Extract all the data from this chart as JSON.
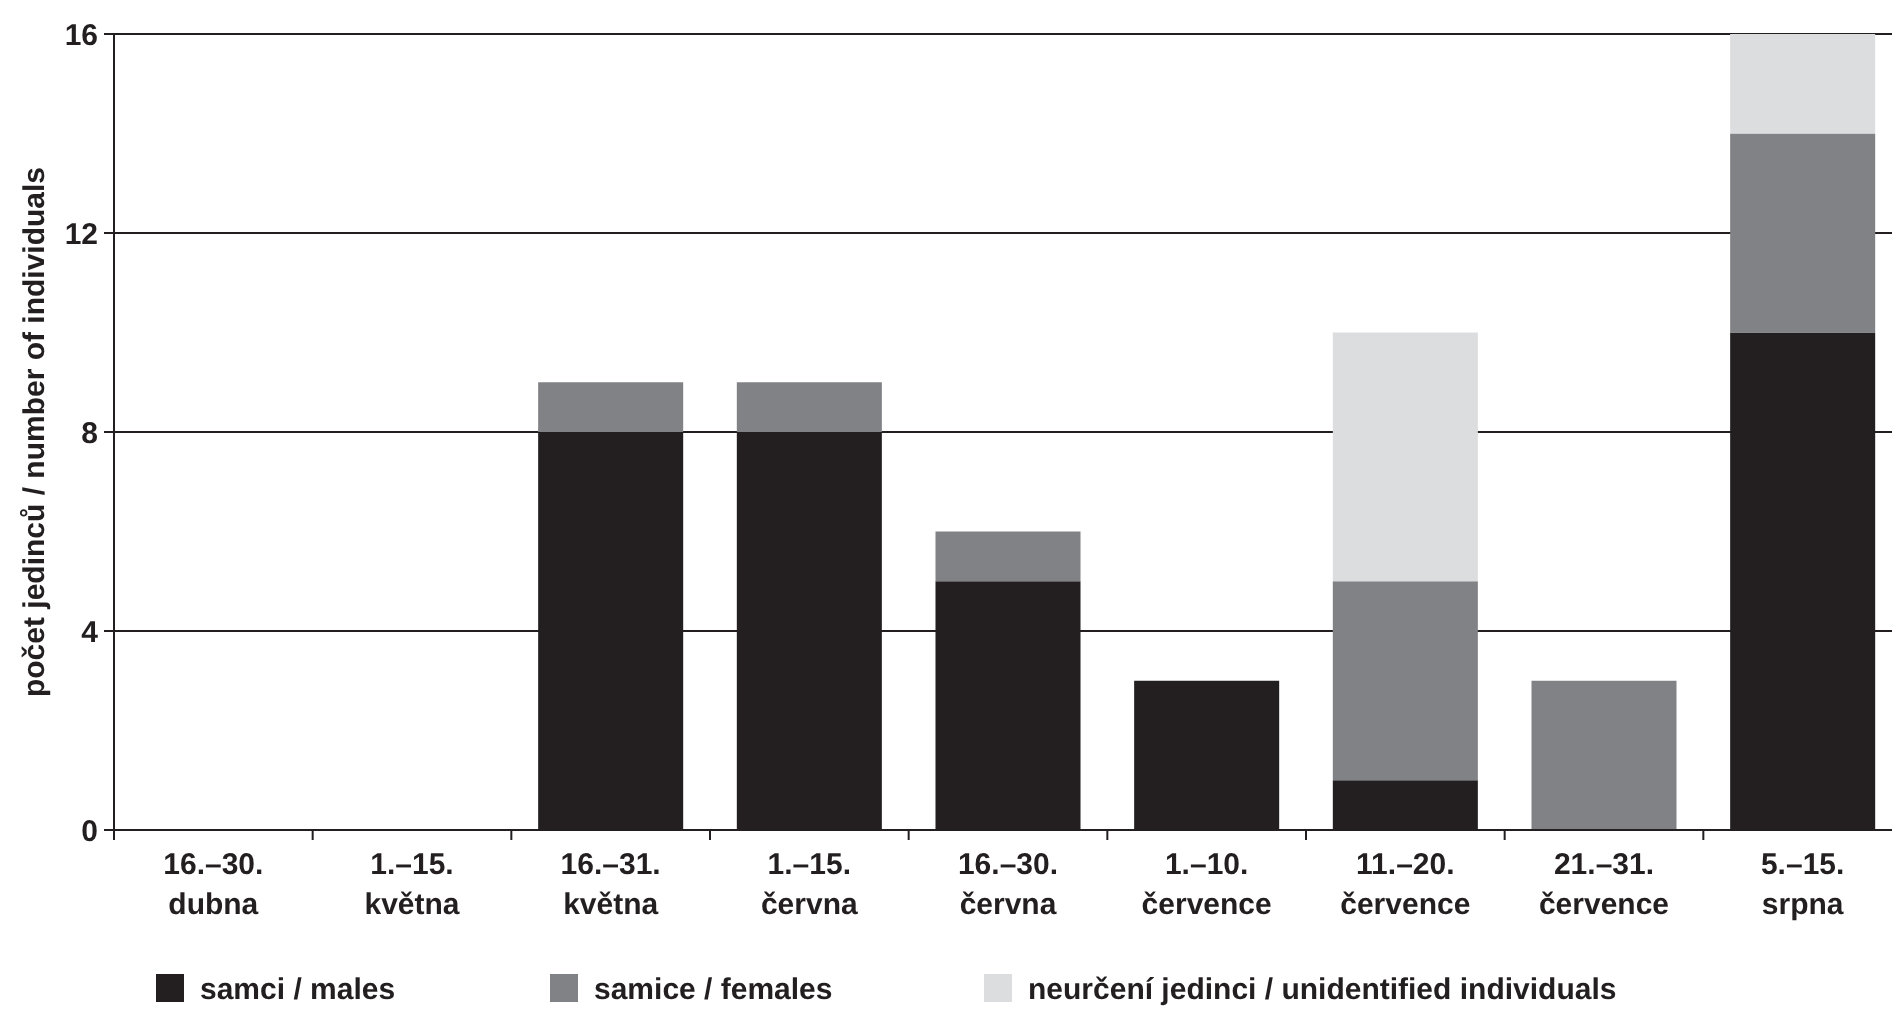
{
  "chart_data": {
    "type": "bar",
    "stacked": true,
    "ylabel": "počet jedinců / number of individuals",
    "categories": [
      "16.–30.\ndubna",
      "1.–15.\nkvětna",
      "16.–31.\nkvětna",
      "1.–15.\nčervna",
      "16.–30.\nčervna",
      "1.–10.\nčervence",
      "11.–20.\nčervence",
      "21.–31.\nčervence",
      "5.–15.\nsrpna"
    ],
    "series": [
      {
        "name": "samci / males",
        "color": "#231f20",
        "values": [
          0,
          0,
          8,
          8,
          5,
          3,
          1,
          0,
          10
        ]
      },
      {
        "name": "samice / females",
        "color": "#818285",
        "values": [
          0,
          0,
          1,
          1,
          1,
          0,
          4,
          3,
          4
        ]
      },
      {
        "name": "neurčení jedinci / unidentified individuals",
        "color": "#dcdddf",
        "values": [
          0,
          0,
          0,
          0,
          0,
          0,
          5,
          0,
          2
        ]
      }
    ],
    "ylim": [
      0,
      16
    ],
    "yticks": [
      0,
      4,
      8,
      12,
      16
    ],
    "grid": "y",
    "legend": "bottom"
  }
}
